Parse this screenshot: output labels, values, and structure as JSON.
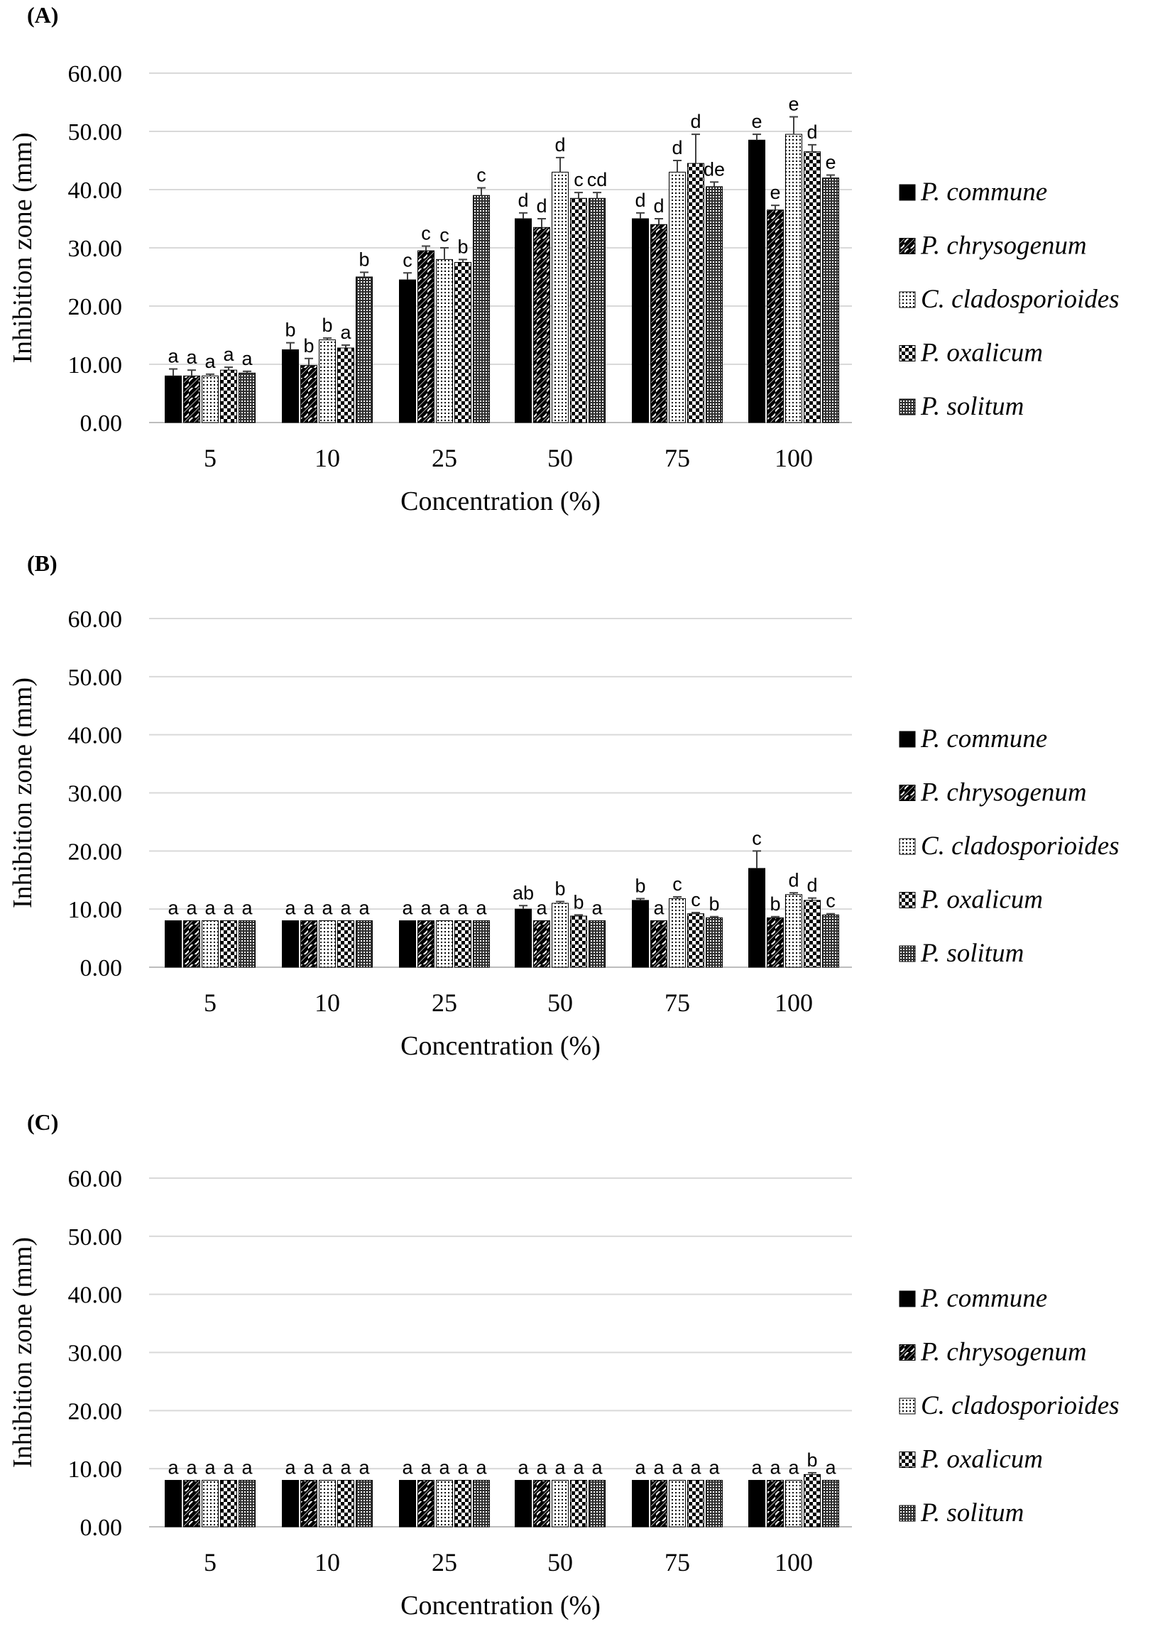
{
  "chart_data": [
    {
      "type": "bar",
      "panel": "(A)",
      "ylabel": "Inhibition zone (mm)",
      "xlabel": "Concentration (%)",
      "ylim": [
        0,
        60
      ],
      "yticks": [
        "0.00",
        "10.00",
        "20.00",
        "30.00",
        "40.00",
        "50.00",
        "60.00"
      ],
      "categories": [
        "5",
        "10",
        "25",
        "50",
        "75",
        "100"
      ],
      "grid": "horizontal",
      "legend_position": "right",
      "series": [
        {
          "name": "P. commune",
          "pattern": "solid",
          "values": [
            8.0,
            12.5,
            24.5,
            35.0,
            35.0,
            48.5
          ],
          "errors": [
            1.2,
            1.2,
            1.2,
            1.0,
            1.0,
            1.0
          ],
          "labels": [
            "a",
            "b",
            "c",
            "d",
            "d",
            "e"
          ]
        },
        {
          "name": "P. chrysogenum",
          "pattern": "diagonal",
          "values": [
            8.0,
            9.8,
            29.5,
            33.5,
            34.0,
            36.5
          ],
          "errors": [
            1.0,
            1.2,
            0.8,
            1.5,
            1.0,
            0.8
          ],
          "labels": [
            "a",
            "b",
            "c",
            "d",
            "d",
            "e"
          ]
        },
        {
          "name": "C. cladosporioides",
          "pattern": "dots",
          "values": [
            8.0,
            14.2,
            28.0,
            43.0,
            43.0,
            49.5
          ],
          "errors": [
            0.3,
            0.3,
            2.0,
            2.5,
            2.0,
            3.0
          ],
          "labels": [
            "a",
            "b",
            "c",
            "d",
            "d",
            "e"
          ]
        },
        {
          "name": "P. oxalicum",
          "pattern": "checker",
          "values": [
            9.0,
            12.8,
            27.5,
            38.5,
            44.5,
            46.5
          ],
          "errors": [
            0.5,
            0.5,
            0.5,
            1.0,
            5.0,
            1.2
          ],
          "labels": [
            "a",
            "a",
            "b",
            "c",
            "d",
            "d"
          ]
        },
        {
          "name": "P. solitum",
          "pattern": "grid",
          "values": [
            8.5,
            25.0,
            39.0,
            38.5,
            40.5,
            42.0
          ],
          "errors": [
            0.3,
            0.8,
            1.3,
            1.0,
            0.8,
            0.5
          ],
          "labels": [
            "a",
            "b",
            "c",
            "cd",
            "de",
            "e"
          ]
        }
      ]
    },
    {
      "type": "bar",
      "panel": "(B)",
      "ylabel": "Inhibition zone (mm)",
      "xlabel": "Concentration (%)",
      "ylim": [
        0,
        60
      ],
      "yticks": [
        "0.00",
        "10.00",
        "20.00",
        "30.00",
        "40.00",
        "50.00",
        "60.00"
      ],
      "categories": [
        "5",
        "10",
        "25",
        "50",
        "75",
        "100"
      ],
      "grid": "horizontal",
      "legend_position": "right",
      "series": [
        {
          "name": "P. commune",
          "pattern": "solid",
          "values": [
            8.0,
            8.0,
            8.0,
            10.0,
            11.5,
            17.0
          ],
          "errors": [
            0,
            0,
            0,
            0.6,
            0.3,
            3.0
          ],
          "labels": [
            "a",
            "a",
            "a",
            "ab",
            "b",
            "c"
          ]
        },
        {
          "name": "P. chrysogenum",
          "pattern": "diagonal",
          "values": [
            8.0,
            8.0,
            8.0,
            8.0,
            8.0,
            8.5
          ],
          "errors": [
            0,
            0,
            0,
            0,
            0,
            0.2
          ],
          "labels": [
            "a",
            "a",
            "a",
            "a",
            "a",
            "b"
          ]
        },
        {
          "name": "C. cladosporioides",
          "pattern": "dots",
          "values": [
            8.0,
            8.0,
            8.0,
            11.0,
            11.8,
            12.5
          ],
          "errors": [
            0,
            0,
            0,
            0.3,
            0.3,
            0.3
          ],
          "labels": [
            "a",
            "a",
            "a",
            "b",
            "c",
            "d"
          ]
        },
        {
          "name": "P. oxalicum",
          "pattern": "checker",
          "values": [
            8.0,
            8.0,
            8.0,
            8.8,
            9.2,
            11.5
          ],
          "errors": [
            0,
            0,
            0,
            0.2,
            0.2,
            0.4
          ],
          "labels": [
            "a",
            "a",
            "a",
            "b",
            "c",
            "d"
          ]
        },
        {
          "name": "P. solitum",
          "pattern": "grid",
          "values": [
            8.0,
            8.0,
            8.0,
            8.0,
            8.5,
            9.0
          ],
          "errors": [
            0,
            0,
            0,
            0,
            0.2,
            0.2
          ],
          "labels": [
            "a",
            "a",
            "a",
            "a",
            "b",
            "c"
          ]
        }
      ]
    },
    {
      "type": "bar",
      "panel": "(C)",
      "ylabel": "Inhibition zone (mm)",
      "xlabel": "Concentration (%)",
      "ylim": [
        0,
        60
      ],
      "yticks": [
        "0.00",
        "10.00",
        "20.00",
        "30.00",
        "40.00",
        "50.00",
        "60.00"
      ],
      "categories": [
        "5",
        "10",
        "25",
        "50",
        "75",
        "100"
      ],
      "grid": "horizontal",
      "legend_position": "right",
      "series": [
        {
          "name": "P. commune",
          "pattern": "solid",
          "values": [
            8.0,
            8.0,
            8.0,
            8.0,
            8.0,
            8.0
          ],
          "errors": [
            0,
            0,
            0,
            0,
            0,
            0
          ],
          "labels": [
            "a",
            "a",
            "a",
            "a",
            "a",
            "a"
          ]
        },
        {
          "name": "P. chrysogenum",
          "pattern": "diagonal",
          "values": [
            8.0,
            8.0,
            8.0,
            8.0,
            8.0,
            8.0
          ],
          "errors": [
            0,
            0,
            0,
            0,
            0,
            0
          ],
          "labels": [
            "a",
            "a",
            "a",
            "a",
            "a",
            "a"
          ]
        },
        {
          "name": "C. cladosporioides",
          "pattern": "dots",
          "values": [
            8.0,
            8.0,
            8.0,
            8.0,
            8.0,
            8.0
          ],
          "errors": [
            0,
            0,
            0,
            0,
            0,
            0
          ],
          "labels": [
            "a",
            "a",
            "a",
            "a",
            "a",
            "a"
          ]
        },
        {
          "name": "P. oxalicum",
          "pattern": "checker",
          "values": [
            8.0,
            8.0,
            8.0,
            8.0,
            8.0,
            9.0
          ],
          "errors": [
            0,
            0,
            0,
            0,
            0,
            0.3
          ],
          "labels": [
            "a",
            "a",
            "a",
            "a",
            "a",
            "b"
          ]
        },
        {
          "name": "P. solitum",
          "pattern": "grid",
          "values": [
            8.0,
            8.0,
            8.0,
            8.0,
            8.0,
            8.0
          ],
          "errors": [
            0,
            0,
            0,
            0,
            0,
            0
          ],
          "labels": [
            "a",
            "a",
            "a",
            "a",
            "a",
            "a"
          ]
        }
      ]
    }
  ]
}
